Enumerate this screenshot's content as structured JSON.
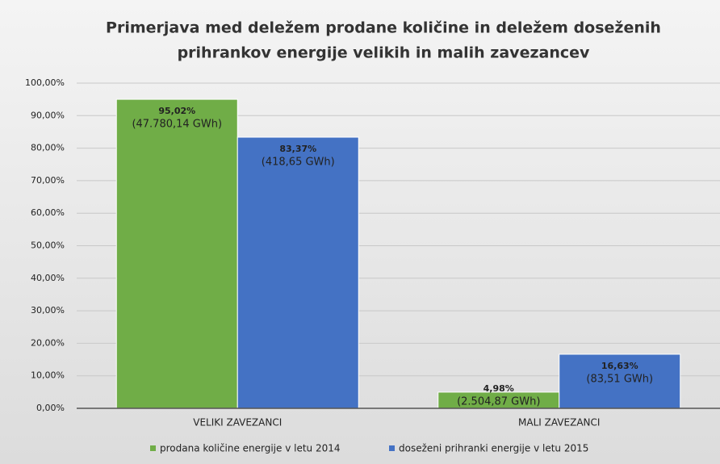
{
  "chart_data": {
    "type": "bar",
    "title": [
      "Primerjava med deležem prodane količine in deležem doseženih",
      "prihrankov energije velikih in malih zavezancev"
    ],
    "categories": [
      "VELIKI ZAVEZANCI",
      "MALI ZAVEZANCI"
    ],
    "series": [
      {
        "name": "prodana količine energije v letu 2014",
        "color": "#70ad47",
        "values": [
          95.02,
          4.98
        ],
        "value_labels": [
          "95,02%",
          "4,98%"
        ],
        "energy_labels": [
          "(47.780,14 GWh)",
          "(2.504,87 GWh)"
        ]
      },
      {
        "name": "doseženi prihranki energije v letu 2015",
        "color": "#4472c4",
        "values": [
          83.37,
          16.63
        ],
        "value_labels": [
          "83,37%",
          "16,63%"
        ],
        "energy_labels": [
          "(418,65 GWh)",
          "(83,51 GWh)"
        ]
      }
    ],
    "ylim": [
      0,
      100
    ],
    "yticks": [
      {
        "value": 0,
        "label": "0,00%"
      },
      {
        "value": 10,
        "label": "10,00%"
      },
      {
        "value": 20,
        "label": "20,00%"
      },
      {
        "value": 30,
        "label": "30,00%"
      },
      {
        "value": 40,
        "label": "40,00%"
      },
      {
        "value": 50,
        "label": "50,00%"
      },
      {
        "value": 60,
        "label": "60,00%"
      },
      {
        "value": 70,
        "label": "70,00%"
      },
      {
        "value": 80,
        "label": "80,00%"
      },
      {
        "value": 90,
        "label": "90,00%"
      },
      {
        "value": 100,
        "label": "100,00%"
      }
    ],
    "grid": true,
    "legend": "bottom"
  }
}
